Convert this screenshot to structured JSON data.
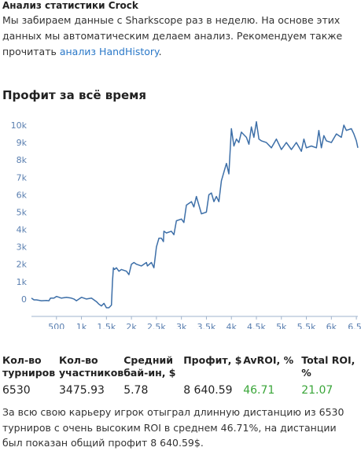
{
  "intro": {
    "title": "Анализ статистики Crock",
    "text_before_link": "Мы забираем данные с Sharkscope раз в неделю. На основе этих данных мы автоматическим делаем анализ. Рекомендуем также прочитать ",
    "link_text": "анализ HandHistory",
    "text_after_link": "."
  },
  "chart_title": "Профит за всё время",
  "chart_data": {
    "type": "line",
    "title": "Профит за всё время",
    "xlabel": "",
    "ylabel": "",
    "xlim": [
      0,
      6530
    ],
    "ylim": [
      -1000,
      10500
    ],
    "x_ticks": [
      "500",
      "1k",
      "1.5k",
      "2k",
      "2.5k",
      "3k",
      "3.5k",
      "4k",
      "4.5k",
      "5k",
      "5.5k",
      "6k",
      "6.5"
    ],
    "y_ticks": [
      "0",
      "1k",
      "2k",
      "3k",
      "4k",
      "5k",
      "6k",
      "7k",
      "8k",
      "9k",
      "10k"
    ],
    "grid": false,
    "line_color": "#3d6fa8",
    "series": [
      {
        "x": [
          0,
          50,
          100,
          200,
          300,
          350,
          380,
          450,
          500,
          550,
          600,
          700,
          800,
          850,
          900,
          1000,
          1100,
          1200,
          1300,
          1350,
          1400,
          1450,
          1500,
          1550,
          1600,
          1620,
          1640,
          1660,
          1700,
          1750,
          1800,
          1900,
          1950,
          2000,
          2050,
          2100,
          2200,
          2300,
          2320,
          2400,
          2450,
          2500,
          2550,
          2600,
          2640,
          2650,
          2700,
          2800,
          2850,
          2900,
          3000,
          3050,
          3100,
          3200,
          3250,
          3300,
          3400,
          3500,
          3550,
          3600,
          3650,
          3700,
          3750,
          3800,
          3900,
          3950,
          4000,
          4050,
          4100,
          4150,
          4200,
          4300,
          4350,
          4400,
          4450,
          4500,
          4550,
          4600,
          4700,
          4800,
          4900,
          5000,
          5100,
          5200,
          5300,
          5400,
          5450,
          5500,
          5600,
          5700,
          5750,
          5800,
          5850,
          5900,
          6000,
          6100,
          6200,
          6250,
          6300,
          6400,
          6450,
          6500,
          6530
        ],
        "y": [
          50,
          -50,
          -50,
          -100,
          -80,
          -100,
          50,
          50,
          150,
          100,
          50,
          100,
          50,
          0,
          -100,
          100,
          0,
          50,
          -150,
          -300,
          -400,
          -250,
          -500,
          -500,
          -350,
          1000,
          1800,
          1700,
          1800,
          1600,
          1700,
          1600,
          1400,
          2000,
          2100,
          2000,
          1900,
          2100,
          1900,
          2100,
          1800,
          3000,
          3500,
          3500,
          3300,
          3900,
          3800,
          3900,
          3700,
          4500,
          4600,
          4400,
          5400,
          5600,
          5300,
          5900,
          4900,
          5000,
          6000,
          6100,
          5600,
          5900,
          5600,
          6800,
          7800,
          7200,
          9800,
          8800,
          9200,
          9000,
          9600,
          9300,
          8900,
          9900,
          9300,
          10200,
          9200,
          9100,
          9000,
          8700,
          9200,
          8600,
          9000,
          8600,
          9000,
          8500,
          9200,
          8700,
          8800,
          8700,
          9700,
          8700,
          9400,
          9100,
          9000,
          9500,
          9300,
          10000,
          9700,
          9800,
          9500,
          9100,
          8700
        ]
      }
    ]
  },
  "stats": {
    "headers": [
      "Кол-во\nтурниров",
      "Кол-во\nучастников",
      "Средний\nбай-ин, $",
      "Профит, $",
      "AvROI, %",
      "Total ROI,\n%"
    ],
    "values": [
      "6530",
      "3475.93",
      "5.78",
      "8 640.59",
      "46.71",
      "21.07"
    ]
  },
  "summary": "За всю свою карьеру игрок отыграл длинную дистанцию из 6530 турниров с очень высоким ROI в среднем 46.71%, на дистанции был показан общий профит 8 640.59$.",
  "colors": {
    "link": "#2a78c8",
    "positive": "#3aa639",
    "line": "#3d6fa8",
    "axis_text": "#5a7fb0"
  }
}
